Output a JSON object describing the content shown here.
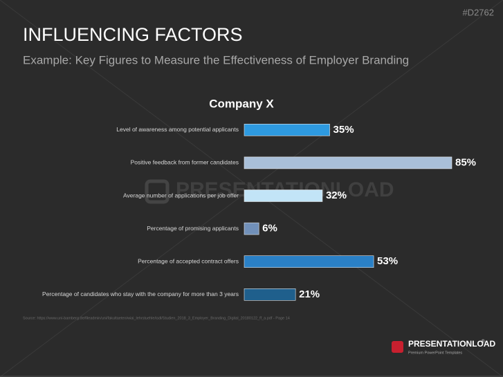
{
  "header": {
    "id": "#D2762",
    "title": "INFLUENCING FACTORS",
    "subtitle": "Example: Key Figures to Measure the Effectiveness of Employer Branding"
  },
  "chart_data": {
    "type": "bar",
    "orientation": "horizontal",
    "title": "Company X",
    "categories": [
      "Level of awareness among potential applicants",
      "Positive feedback from former candidates",
      "Average number of applications per job offer",
      "Percentage of promising applicants",
      "Percentage of accepted contract offers",
      "Percentage of candidates who stay with the company for more than 3 years"
    ],
    "values": [
      35,
      85,
      32,
      6,
      53,
      21
    ],
    "value_labels": [
      "35%",
      "85%",
      "32%",
      "6%",
      "53%",
      "21%"
    ],
    "colors": [
      "#2e9ae0",
      "#a9bfd8",
      "#c2e4f7",
      "#7190b9",
      "#2a80c6",
      "#1f5f8c"
    ]
  },
  "source": "Source: https://www.uni-bamberg.de/fileadmin/uni/fakultaeten/wiai_lehrstuehle/isdl/Studien_2018_3_Employer_Branding_Digital_20180122_ff_a.pdf - Page 14",
  "watermark": "PRESENTATIONLOAD",
  "logo": {
    "name": "PRESENTATIONLOAD",
    "mark": "®",
    "tagline": "Premium PowerPoint Templates"
  }
}
